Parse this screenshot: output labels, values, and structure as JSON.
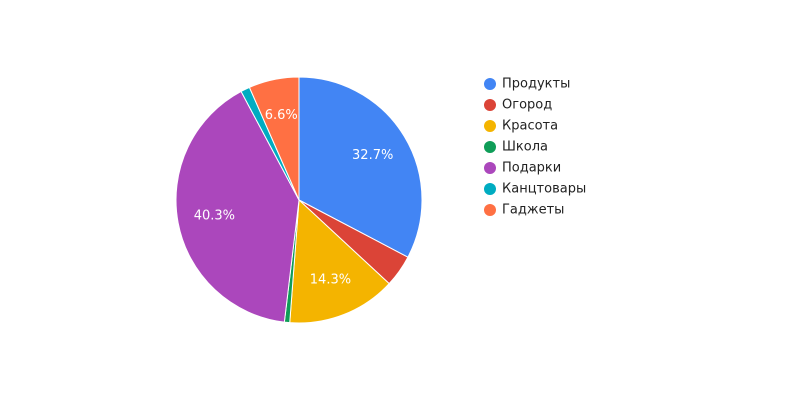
{
  "chart_data": {
    "type": "pie",
    "title": "",
    "legend_position": "right",
    "slices": [
      {
        "name": "Продукты",
        "value": 32.7,
        "color": "#4285f4",
        "label": "32.7%"
      },
      {
        "name": "Огород",
        "value": 4.2,
        "color": "#db4437",
        "label": ""
      },
      {
        "name": "Красота",
        "value": 14.3,
        "color": "#f4b400",
        "label": "14.3%"
      },
      {
        "name": "Школа",
        "value": 0.7,
        "color": "#0f9d58",
        "label": ""
      },
      {
        "name": "Подарки",
        "value": 40.3,
        "color": "#ab47bc",
        "label": "40.3%"
      },
      {
        "name": "Канцтовары",
        "value": 1.2,
        "color": "#00acc1",
        "label": ""
      },
      {
        "name": "Гаджеты",
        "value": 6.6,
        "color": "#ff7043",
        "label": "6.6%"
      }
    ]
  }
}
